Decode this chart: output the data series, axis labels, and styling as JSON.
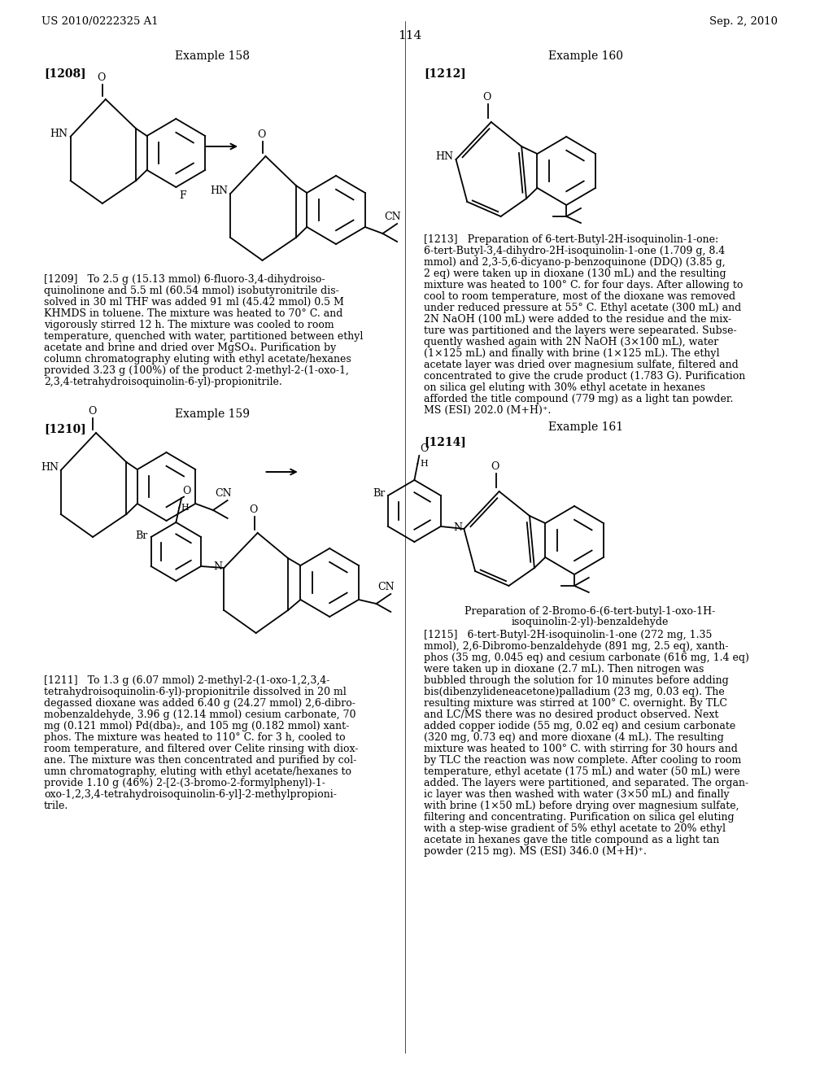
{
  "page_header_left": "US 2010/0222325 A1",
  "page_header_right": "Sep. 2, 2010",
  "page_number": "114",
  "bg": "#ffffff",
  "fg": "#000000",
  "example158": "Example 158",
  "example159": "Example 159",
  "example160": "Example 160",
  "example161": "Example 161",
  "lbl1208": "[1208]",
  "lbl1209": "[1209]",
  "lbl1210": "[1210]",
  "lbl1211": "[1211]",
  "lbl1212": "[1212]",
  "lbl1213": "[1213]",
  "lbl1214": "[1214]",
  "lbl1215": "[1215]",
  "prep1215": "Preparation of 2-Bromo-6-(6-tert-butyl-1-oxo-1H-\nisoquinolin-2-yl)-benzaldehyde",
  "text1209": [
    "[1209]   To 2.5 g (15.13 mmol) 6-fluoro-3,4-dihydroiso-",
    "quinolinone and 5.5 ml (60.54 mmol) isobutyronitrile dis-",
    "solved in 30 ml THF was added 91 ml (45.42 mmol) 0.5 M",
    "KHMDS in toluene. The mixture was heated to 70° C. and",
    "vigorously stirred 12 h. The mixture was cooled to room",
    "temperature, quenched with water, partitioned between ethyl",
    "acetate and brine and dried over MgSO₄. Purification by",
    "column chromatography eluting with ethyl acetate/hexanes",
    "provided 3.23 g (100%) of the product 2-methyl-2-(1-oxo-1,",
    "2,3,4-tetrahydroisoquinolin-6-yl)-propionitrile."
  ],
  "text1211": [
    "[1211]   To 1.3 g (6.07 mmol) 2-methyl-2-(1-oxo-1,2,3,4-",
    "tetrahydroisoquinolin-6-yl)-propionitrile dissolved in 20 ml",
    "degassed dioxane was added 6.40 g (24.27 mmol) 2,6-dibro-",
    "mobenzaldehyde, 3.96 g (12.14 mmol) cesium carbonate, 70",
    "mg (0.121 mmol) Pd(dba)₂, and 105 mg (0.182 mmol) xant-",
    "phos. The mixture was heated to 110° C. for 3 h, cooled to",
    "room temperature, and filtered over Celite rinsing with diox-",
    "ane. The mixture was then concentrated and purified by col-",
    "umn chromatography, eluting with ethyl acetate/hexanes to",
    "provide 1.10 g (46%) 2-[2-(3-bromo-2-formylphenyl)-1-",
    "oxo-1,2,3,4-tetrahydroisoquinolin-6-yl]-2-methylpropioni-",
    "trile."
  ],
  "text1213": [
    "[1213]   Preparation of 6-tert-Butyl-2H-isoquinolin-1-one:",
    "6-tert-Butyl-3,4-dihydro-2H-isoquinolin-1-one (1.709 g, 8.4",
    "mmol) and 2,3-5,6-dicyano-p-benzoquinone (DDQ) (3.85 g,",
    "2 eq) were taken up in dioxane (130 mL) and the resulting",
    "mixture was heated to 100° C. for four days. After allowing to",
    "cool to room temperature, most of the dioxane was removed",
    "under reduced pressure at 55° C. Ethyl acetate (300 mL) and",
    "2N NaOH (100 mL) were added to the residue and the mix-",
    "ture was partitioned and the layers were sepearated. Subse-",
    "quently washed again with 2N NaOH (3×100 mL), water",
    "(1×125 mL) and finally with brine (1×125 mL). The ethyl",
    "acetate layer was dried over magnesium sulfate, filtered and",
    "concentrated to give the crude product (1.783 G). Purification",
    "on silica gel eluting with 30% ethyl acetate in hexanes",
    "afforded the title compound (779 mg) as a light tan powder.",
    "MS (ESI) 202.0 (M+H)⁺."
  ],
  "text1215": [
    "[1215]   6-tert-Butyl-2H-isoquinolin-1-one (272 mg, 1.35",
    "mmol), 2,6-Dibromo-benzaldehyde (891 mg, 2.5 eq), xanth-",
    "phos (35 mg, 0.045 eq) and cesium carbonate (616 mg, 1.4 eq)",
    "were taken up in dioxane (2.7 mL). Then nitrogen was",
    "bubbled through the solution for 10 minutes before adding",
    "bis(dibenzylideneacetone)palladium (23 mg, 0.03 eq). The",
    "resulting mixture was stirred at 100° C. overnight. By TLC",
    "and LC/MS there was no desired product observed. Next",
    "added copper iodide (55 mg, 0.02 eq) and cesium carbonate",
    "(320 mg, 0.73 eq) and more dioxane (4 mL). The resulting",
    "mixture was heated to 100° C. with stirring for 30 hours and",
    "by TLC the reaction was now complete. After cooling to room",
    "temperature, ethyl acetate (175 mL) and water (50 mL) were",
    "added. The layers were partitioned, and separated. The organ-",
    "ic layer was then washed with water (3×50 mL) and finally",
    "with brine (1×50 mL) before drying over magnesium sulfate,",
    "filtering and concentrating. Purification on silica gel eluting",
    "with a step-wise gradient of 5% ethyl acetate to 20% ethyl",
    "acetate in hexanes gave the title compound as a light tan",
    "powder (215 mg). MS (ESI) 346.0 (M+H)⁺."
  ]
}
